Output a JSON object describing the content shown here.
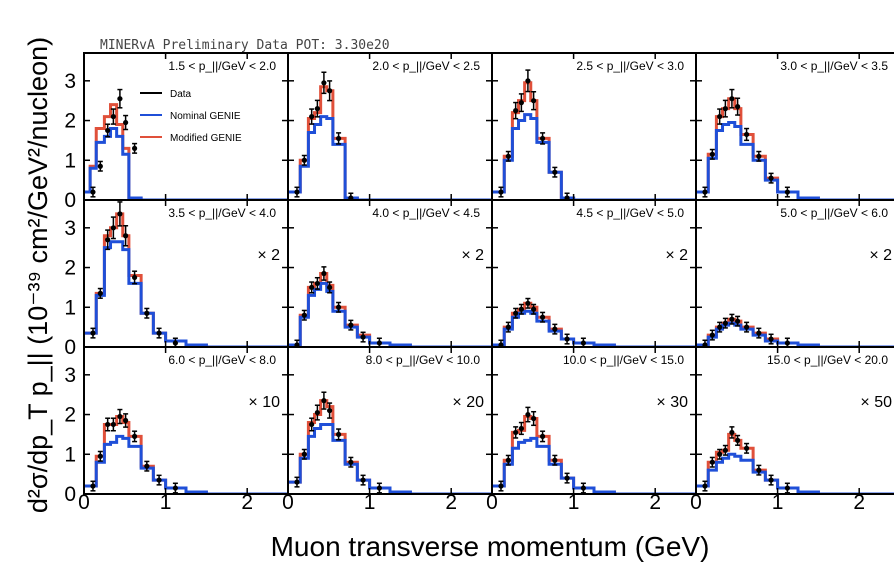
{
  "banner": "MINERvA Preliminary Data POT: 3.30e20",
  "y_axis_label": "d²σ/dp_T p_|| (10⁻³⁹ cm²/GeV²/nucleon)",
  "x_axis_label": "Muon transverse momentum (GeV)",
  "colors": {
    "data": "#000000",
    "nominal": "#1f4fd8",
    "modified": "#e0503a"
  },
  "chart_data": {
    "type": "line",
    "title": "",
    "xlabel": "Muon transverse momentum (GeV)",
    "ylabel": "d²σ/dp_T p_|| (10⁻³⁹ cm²/GeV²/nucleon)",
    "xlim": [
      0,
      2.5
    ],
    "ylim": [
      0,
      3.7
    ],
    "x_ticks": [
      0,
      1,
      2
    ],
    "y_ticks": [
      0,
      1,
      2,
      3
    ],
    "legend": {
      "placement": "top-left panel",
      "entries": [
        "Data",
        "Nominal GENIE",
        "Modified GENIE"
      ]
    },
    "bin_edges": [
      0,
      0.075,
      0.15,
      0.25,
      0.325,
      0.4,
      0.475,
      0.55,
      0.7,
      0.85,
      1.0,
      1.25,
      1.5,
      2.5
    ],
    "panels": [
      {
        "label": "1.5 < p_||/GeV < 2.0",
        "scale": "",
        "modified": [
          0.2,
          0.85,
          1.8,
          2.1,
          2.4,
          1.9,
          1.3,
          0.05,
          0,
          0,
          0,
          0,
          0
        ],
        "nominal": [
          0.2,
          0.8,
          1.45,
          1.6,
          1.8,
          1.6,
          1.15,
          0.05,
          0,
          0,
          0,
          0,
          0
        ],
        "data": [
          [
            0.11,
            0.2
          ],
          [
            0.2,
            0.85
          ],
          [
            0.29,
            1.75
          ],
          [
            0.36,
            2.1
          ],
          [
            0.44,
            2.55
          ],
          [
            0.51,
            1.95
          ],
          [
            0.62,
            1.3
          ]
        ]
      },
      {
        "label": "2.0 < p_||/GeV < 2.5",
        "scale": "",
        "modified": [
          0.2,
          0.2,
          1.0,
          2.05,
          2.2,
          2.85,
          2.75,
          1.55,
          0.05,
          0,
          0,
          0,
          0
        ],
        "nominal": [
          0.2,
          0.2,
          0.85,
          1.7,
          1.9,
          2.1,
          2.05,
          1.4,
          0.05,
          0,
          0,
          0,
          0
        ],
        "data": [
          [
            0.11,
            0.2
          ],
          [
            0.2,
            1.0
          ],
          [
            0.29,
            2.1
          ],
          [
            0.36,
            2.3
          ],
          [
            0.44,
            2.95
          ],
          [
            0.51,
            2.75
          ],
          [
            0.62,
            1.55
          ],
          [
            0.77,
            0.05
          ]
        ]
      },
      {
        "label": "2.5 < p_||/GeV < 3.0",
        "scale": "",
        "modified": [
          0.2,
          0.2,
          1.1,
          2.2,
          2.5,
          2.95,
          2.5,
          1.55,
          0.7,
          0.05,
          0,
          0,
          0
        ],
        "nominal": [
          0.2,
          0.2,
          1.0,
          1.8,
          2.0,
          2.15,
          2.05,
          1.45,
          0.7,
          0.05,
          0,
          0,
          0
        ],
        "data": [
          [
            0.11,
            0.2
          ],
          [
            0.2,
            1.1
          ],
          [
            0.29,
            2.25
          ],
          [
            0.36,
            2.45
          ],
          [
            0.44,
            3.0
          ],
          [
            0.51,
            2.5
          ],
          [
            0.62,
            1.55
          ],
          [
            0.77,
            0.7
          ],
          [
            0.92,
            0.05
          ]
        ]
      },
      {
        "label": "3.0 < p_||/GeV < 3.5",
        "scale": "",
        "modified": [
          0.2,
          0.2,
          1.15,
          2.1,
          2.3,
          2.55,
          2.3,
          1.65,
          1.1,
          0.55,
          0.2,
          0.05,
          0
        ],
        "nominal": [
          0.2,
          0.2,
          1.05,
          1.75,
          1.9,
          1.95,
          1.85,
          1.4,
          1.0,
          0.5,
          0.2,
          0.05,
          0
        ],
        "data": [
          [
            0.11,
            0.2
          ],
          [
            0.2,
            1.15
          ],
          [
            0.29,
            2.1
          ],
          [
            0.36,
            2.3
          ],
          [
            0.44,
            2.55
          ],
          [
            0.51,
            2.35
          ],
          [
            0.62,
            1.65
          ],
          [
            0.77,
            1.1
          ],
          [
            0.92,
            0.55
          ],
          [
            1.12,
            0.2
          ]
        ]
      },
      {
        "label": "3.5 < p_||/GeV < 4.0",
        "scale": "× 2",
        "modified": [
          0.35,
          0.35,
          1.35,
          2.8,
          3.0,
          3.35,
          2.8,
          1.8,
          0.85,
          0.35,
          0.15,
          0.05,
          0
        ],
        "nominal": [
          0.35,
          0.35,
          1.3,
          2.5,
          2.65,
          2.65,
          2.45,
          1.6,
          0.85,
          0.35,
          0.15,
          0.05,
          0
        ],
        "data": [
          [
            0.11,
            0.35
          ],
          [
            0.2,
            1.35
          ],
          [
            0.29,
            2.7
          ],
          [
            0.36,
            3.0
          ],
          [
            0.44,
            3.35
          ],
          [
            0.51,
            2.8
          ],
          [
            0.62,
            1.75
          ],
          [
            0.77,
            0.85
          ],
          [
            0.92,
            0.35
          ],
          [
            1.12,
            0.1
          ]
        ]
      },
      {
        "label": "4.0 < p_||/GeV < 4.5",
        "scale": "× 2",
        "modified": [
          0.05,
          0.05,
          0.8,
          1.5,
          1.6,
          1.85,
          1.55,
          1.0,
          0.55,
          0.3,
          0.1,
          0.05,
          0
        ],
        "nominal": [
          0.05,
          0.05,
          0.75,
          1.3,
          1.45,
          1.6,
          1.4,
          0.9,
          0.5,
          0.25,
          0.1,
          0.05,
          0
        ],
        "data": [
          [
            0.11,
            0.05
          ],
          [
            0.2,
            0.8
          ],
          [
            0.29,
            1.5
          ],
          [
            0.36,
            1.6
          ],
          [
            0.44,
            1.85
          ],
          [
            0.51,
            1.5
          ],
          [
            0.62,
            1.0
          ],
          [
            0.77,
            0.55
          ],
          [
            0.92,
            0.25
          ],
          [
            1.12,
            0.1
          ]
        ]
      },
      {
        "label": "4.5 < p_||/GeV < 5.0",
        "scale": "× 2",
        "modified": [
          0.05,
          0.05,
          0.5,
          0.85,
          0.95,
          1.1,
          1.0,
          0.75,
          0.45,
          0.2,
          0.1,
          0.05,
          0
        ],
        "nominal": [
          0.05,
          0.05,
          0.45,
          0.75,
          0.85,
          0.9,
          0.85,
          0.65,
          0.4,
          0.2,
          0.1,
          0.05,
          0
        ],
        "data": [
          [
            0.11,
            0.05
          ],
          [
            0.2,
            0.5
          ],
          [
            0.29,
            0.85
          ],
          [
            0.36,
            0.95
          ],
          [
            0.44,
            1.1
          ],
          [
            0.51,
            0.95
          ],
          [
            0.62,
            0.75
          ],
          [
            0.77,
            0.45
          ],
          [
            0.92,
            0.2
          ],
          [
            1.12,
            0.1
          ]
        ]
      },
      {
        "label": "5.0 < p_||/GeV < 6.0",
        "scale": "× 2",
        "modified": [
          0.05,
          0.05,
          0.3,
          0.5,
          0.6,
          0.7,
          0.65,
          0.5,
          0.35,
          0.2,
          0.1,
          0.05,
          0
        ],
        "nominal": [
          0.05,
          0.05,
          0.25,
          0.45,
          0.55,
          0.6,
          0.55,
          0.45,
          0.3,
          0.15,
          0.1,
          0.05,
          0
        ],
        "data": [
          [
            0.11,
            0.05
          ],
          [
            0.2,
            0.3
          ],
          [
            0.29,
            0.5
          ],
          [
            0.36,
            0.6
          ],
          [
            0.44,
            0.7
          ],
          [
            0.51,
            0.65
          ],
          [
            0.62,
            0.5
          ],
          [
            0.77,
            0.35
          ],
          [
            0.92,
            0.2
          ],
          [
            1.12,
            0.1
          ]
        ]
      },
      {
        "label": "6.0 < p_||/GeV < 8.0",
        "scale": "× 10",
        "modified": [
          0.2,
          0.2,
          0.95,
          1.75,
          1.75,
          1.95,
          1.8,
          1.45,
          0.7,
          0.35,
          0.15,
          0.05,
          0
        ],
        "nominal": [
          0.2,
          0.2,
          0.8,
          1.25,
          1.3,
          1.45,
          1.4,
          1.2,
          0.65,
          0.35,
          0.15,
          0.05,
          0
        ],
        "data": [
          [
            0.11,
            0.2
          ],
          [
            0.2,
            0.95
          ],
          [
            0.29,
            1.75
          ],
          [
            0.36,
            1.75
          ],
          [
            0.44,
            1.95
          ],
          [
            0.51,
            1.85
          ],
          [
            0.62,
            1.45
          ],
          [
            0.77,
            0.7
          ],
          [
            0.92,
            0.35
          ],
          [
            1.12,
            0.15
          ]
        ]
      },
      {
        "label": "8.0 < p_||/GeV < 10.0",
        "scale": "× 20",
        "modified": [
          0.3,
          0.3,
          1.0,
          1.8,
          2.0,
          2.35,
          2.2,
          1.5,
          0.8,
          0.35,
          0.15,
          0.05,
          0
        ],
        "nominal": [
          0.3,
          0.3,
          0.9,
          1.45,
          1.65,
          1.75,
          1.75,
          1.35,
          0.75,
          0.35,
          0.15,
          0.05,
          0
        ],
        "data": [
          [
            0.11,
            0.3
          ],
          [
            0.2,
            1.0
          ],
          [
            0.29,
            1.75
          ],
          [
            0.36,
            2.05
          ],
          [
            0.44,
            2.35
          ],
          [
            0.51,
            2.1
          ],
          [
            0.62,
            1.5
          ],
          [
            0.77,
            0.8
          ],
          [
            0.92,
            0.35
          ],
          [
            1.12,
            0.15
          ]
        ]
      },
      {
        "label": "10.0 < p_||/GeV < 15.0",
        "scale": "× 30",
        "modified": [
          0.2,
          0.2,
          0.85,
          1.55,
          1.6,
          1.95,
          1.9,
          1.45,
          0.85,
          0.4,
          0.15,
          0.05,
          0
        ],
        "nominal": [
          0.2,
          0.2,
          0.75,
          1.15,
          1.3,
          1.35,
          1.4,
          1.2,
          0.75,
          0.4,
          0.15,
          0.05,
          0
        ],
        "data": [
          [
            0.11,
            0.2
          ],
          [
            0.2,
            0.85
          ],
          [
            0.29,
            1.55
          ],
          [
            0.36,
            1.65
          ],
          [
            0.44,
            2.0
          ],
          [
            0.51,
            1.9
          ],
          [
            0.62,
            1.45
          ],
          [
            0.77,
            0.85
          ],
          [
            0.92,
            0.4
          ],
          [
            1.12,
            0.15
          ]
        ]
      },
      {
        "label": "15.0 < p_||/GeV < 20.0",
        "scale": "× 50",
        "modified": [
          0.2,
          0.2,
          0.8,
          1.05,
          1.1,
          1.5,
          1.35,
          1.15,
          0.6,
          0.35,
          0.15,
          0.05,
          0
        ],
        "nominal": [
          0.2,
          0.2,
          0.6,
          0.8,
          0.9,
          1.0,
          0.95,
          0.85,
          0.55,
          0.35,
          0.15,
          0.05,
          0
        ],
        "data": [
          [
            0.11,
            0.2
          ],
          [
            0.2,
            0.8
          ],
          [
            0.29,
            1.0
          ],
          [
            0.36,
            1.1
          ],
          [
            0.44,
            1.55
          ],
          [
            0.51,
            1.35
          ],
          [
            0.62,
            1.15
          ],
          [
            0.77,
            0.6
          ],
          [
            0.92,
            0.35
          ],
          [
            1.12,
            0.15
          ]
        ]
      }
    ]
  }
}
